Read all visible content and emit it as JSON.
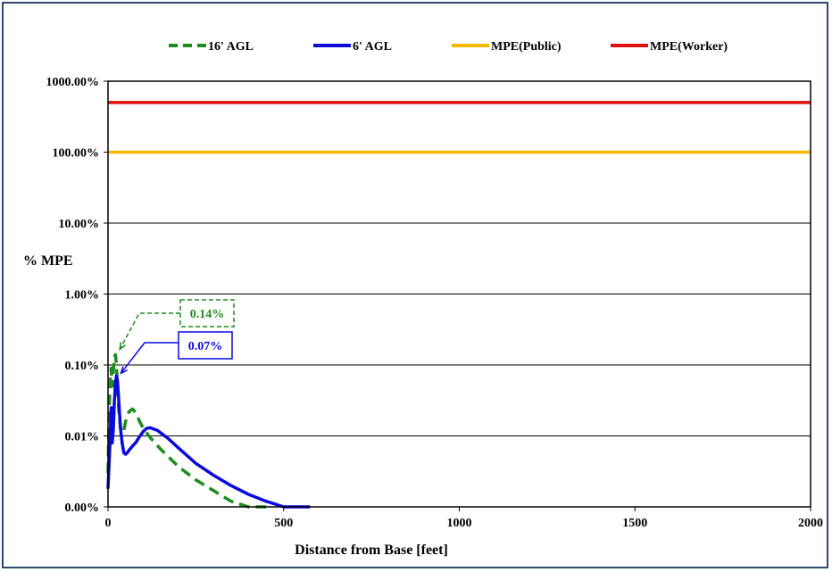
{
  "chart_data": {
    "type": "line",
    "xlabel": "Distance from Base [feet]",
    "ylabel": "% MPE",
    "xlim": [
      0,
      2000
    ],
    "ylim_log_percent": [
      0.001,
      1000
    ],
    "y_scale": "log",
    "x_ticks": [
      0,
      500,
      1000,
      1500,
      2000
    ],
    "y_ticks": [
      {
        "value": 0.001,
        "label": "0.00%"
      },
      {
        "value": 0.01,
        "label": "0.01%"
      },
      {
        "value": 0.1,
        "label": "0.10%"
      },
      {
        "value": 1,
        "label": "1.00%"
      },
      {
        "value": 10,
        "label": "10.00%"
      },
      {
        "value": 100,
        "label": "100.00%"
      },
      {
        "value": 1000,
        "label": "1000.00%"
      }
    ],
    "grid": "horizontal",
    "legend_position": "top",
    "series": [
      {
        "name": "16' AGL",
        "color": "#1e8c1e",
        "style": "dashed",
        "x": [
          0,
          3,
          6,
          9,
          12,
          15,
          18,
          21,
          24,
          27,
          30,
          35,
          40,
          45,
          50,
          60,
          70,
          80,
          90,
          100,
          120,
          150,
          200,
          250,
          300,
          350,
          400,
          450
        ],
        "y": [
          0.003,
          0.02,
          0.06,
          0.09,
          0.05,
          0.08,
          0.13,
          0.14,
          0.1,
          0.05,
          0.025,
          0.013,
          0.011,
          0.012,
          0.016,
          0.022,
          0.024,
          0.021,
          0.016,
          0.013,
          0.0095,
          0.0065,
          0.0037,
          0.0024,
          0.0017,
          0.0012,
          0.0009,
          0.00065
        ]
      },
      {
        "name": "6' AGL",
        "color": "#0a0adc",
        "style": "solid",
        "x": [
          0,
          3,
          6,
          9,
          12,
          15,
          18,
          21,
          24,
          27,
          30,
          33,
          36,
          40,
          45,
          50,
          55,
          60,
          70,
          80,
          90,
          100,
          110,
          120,
          140,
          170,
          200,
          250,
          300,
          350,
          400,
          450,
          500,
          550,
          575
        ],
        "y": [
          0.0018,
          0.004,
          0.009,
          0.025,
          0.008,
          0.012,
          0.03,
          0.055,
          0.07,
          0.06,
          0.035,
          0.02,
          0.012,
          0.0082,
          0.0058,
          0.0055,
          0.0058,
          0.0063,
          0.0072,
          0.0082,
          0.0098,
          0.0115,
          0.0128,
          0.013,
          0.012,
          0.0093,
          0.0068,
          0.0041,
          0.0028,
          0.002,
          0.0015,
          0.0012,
          0.0009,
          0.00075,
          0.00065
        ]
      },
      {
        "name": "MPE(Public)",
        "color": "#f5b800",
        "style": "solid",
        "x": [
          0,
          2000
        ],
        "y": [
          100,
          100
        ]
      },
      {
        "name": "MPE(Worker)",
        "color": "#e01010",
        "style": "solid",
        "x": [
          0,
          2000
        ],
        "y": [
          500,
          500
        ]
      }
    ],
    "annotations": [
      {
        "text": "0.14%",
        "series": "16' AGL",
        "point": [
          21,
          0.14
        ],
        "border": "dashed",
        "color": "#1e8c1e"
      },
      {
        "text": "0.07%",
        "series": "6' AGL",
        "point": [
          24,
          0.07
        ],
        "border": "solid",
        "color": "#0a0adc"
      }
    ]
  }
}
